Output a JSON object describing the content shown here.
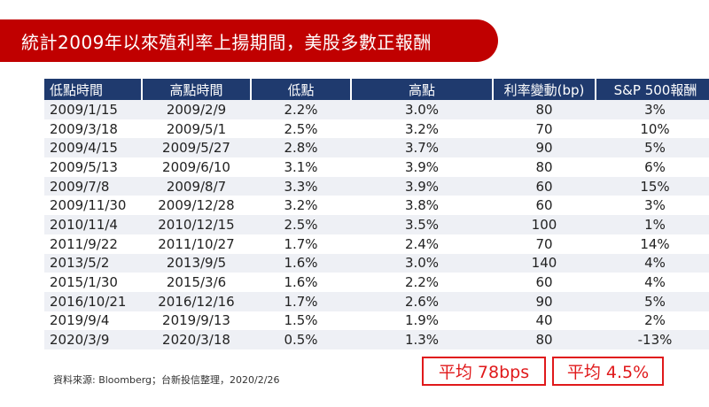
{
  "title": "統計2009年以來殖利率上揚期間，美股多數正報酬",
  "table": {
    "headers": [
      "低點時間",
      "高點時間",
      "低點",
      "高點",
      "利率變動(bp)",
      "S&P 500報酬"
    ],
    "rows": [
      [
        "2009/1/15",
        "2009/2/9",
        "2.2%",
        "3.0%",
        "80",
        "3%"
      ],
      [
        "2009/3/18",
        "2009/5/1",
        "2.5%",
        "3.2%",
        "70",
        "10%"
      ],
      [
        "2009/4/15",
        "2009/5/27",
        "2.8%",
        "3.7%",
        "90",
        "5%"
      ],
      [
        "2009/5/13",
        "2009/6/10",
        "3.1%",
        "3.9%",
        "80",
        "6%"
      ],
      [
        "2009/7/8",
        "2009/8/7",
        "3.3%",
        "3.9%",
        "60",
        "15%"
      ],
      [
        "2009/11/30",
        "2009/12/28",
        "3.2%",
        "3.8%",
        "60",
        "3%"
      ],
      [
        "2010/11/4",
        "2010/12/15",
        "2.5%",
        "3.5%",
        "100",
        "1%"
      ],
      [
        "2011/9/22",
        "2011/10/27",
        "1.7%",
        "2.4%",
        "70",
        "14%"
      ],
      [
        "2013/5/2",
        "2013/9/5",
        "1.6%",
        "3.0%",
        "140",
        "4%"
      ],
      [
        "2015/1/30",
        "2015/3/6",
        "1.6%",
        "2.2%",
        "60",
        "4%"
      ],
      [
        "2016/10/21",
        "2016/12/16",
        "1.7%",
        "2.6%",
        "90",
        "5%"
      ],
      [
        "2019/9/4",
        "2019/9/13",
        "1.5%",
        "1.9%",
        "40",
        "2%"
      ],
      [
        "2020/3/9",
        "2020/3/18",
        "0.5%",
        "1.3%",
        "80",
        "-13%"
      ]
    ]
  },
  "averages": {
    "bp_change": "平均 78bps",
    "sp500_return": "平均 4.5%"
  },
  "source_note": "資料來源: Bloomberg；台新投信整理，2020/2/26",
  "colors": {
    "banner": "#c00000",
    "header": "#1f3a6e",
    "stripe": "#eef0f5",
    "highlight": "#e0191b"
  }
}
